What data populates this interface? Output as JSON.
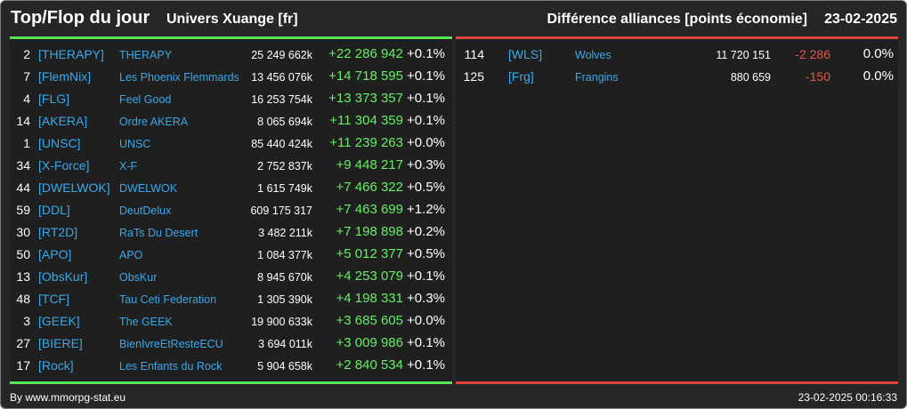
{
  "header": {
    "title": "Top/Flop du jour",
    "subtitle": "Univers Xuange [fr]",
    "right_title": "Différence alliances [points économie]",
    "date": "23-02-2025"
  },
  "colors": {
    "top_accent": "#55e555",
    "flop_accent": "#e0463c",
    "link": "#3aa8e8"
  },
  "top": [
    {
      "rank": "2",
      "tag": "[THERAPY]",
      "name": "THERAPY",
      "points": "25 249 662k",
      "diff": "+22 286 942",
      "pct": "+0.1%"
    },
    {
      "rank": "7",
      "tag": "[FlemNix]",
      "name": "Les Phoenix Flemmards",
      "points": "13 456 076k",
      "diff": "+14 718 595",
      "pct": "+0.1%"
    },
    {
      "rank": "4",
      "tag": "[FLG]",
      "name": "Feel Good",
      "points": "16 253 754k",
      "diff": "+13 373 357",
      "pct": "+0.1%"
    },
    {
      "rank": "14",
      "tag": "[AKERA]",
      "name": "Ordre AKERA",
      "points": "8 065 694k",
      "diff": "+11 304 359",
      "pct": "+0.1%"
    },
    {
      "rank": "1",
      "tag": "[UNSC]",
      "name": "UNSC",
      "points": "85 440 424k",
      "diff": "+11 239 263",
      "pct": "+0.0%"
    },
    {
      "rank": "34",
      "tag": "[X-Force]",
      "name": "X-F",
      "points": "2 752 837k",
      "diff": "+9 448 217",
      "pct": "+0.3%"
    },
    {
      "rank": "44",
      "tag": "[DWELWOK]",
      "name": "DWELWOK",
      "points": "1 615 749k",
      "diff": "+7 466 322",
      "pct": "+0.5%"
    },
    {
      "rank": "59",
      "tag": "[DDL]",
      "name": "DeutDelux",
      "points": "609 175 317",
      "diff": "+7 463 699",
      "pct": "+1.2%"
    },
    {
      "rank": "30",
      "tag": "[RT2D]",
      "name": "RaTs Du Desert",
      "points": "3 482 211k",
      "diff": "+7 198 898",
      "pct": "+0.2%"
    },
    {
      "rank": "50",
      "tag": "[APO]",
      "name": "APO",
      "points": "1 084 377k",
      "diff": "+5 012 377",
      "pct": "+0.5%"
    },
    {
      "rank": "13",
      "tag": "[ObsKur]",
      "name": "ObsKur",
      "points": "8 945 670k",
      "diff": "+4 253 079",
      "pct": "+0.1%"
    },
    {
      "rank": "48",
      "tag": "[TCF]",
      "name": "Tau Ceti Federation",
      "points": "1 305 390k",
      "diff": "+4 198 331",
      "pct": "+0.3%"
    },
    {
      "rank": "3",
      "tag": "[GEEK]",
      "name": "The GEEK",
      "points": "19 900 633k",
      "diff": "+3 685 605",
      "pct": "+0.0%"
    },
    {
      "rank": "27",
      "tag": "[BIERE]",
      "name": "BienIvreEtResteECU",
      "points": "3 694 011k",
      "diff": "+3 009 986",
      "pct": "+0.1%"
    },
    {
      "rank": "17",
      "tag": "[Rock]",
      "name": "Les Enfants du Rock",
      "points": "5 904 658k",
      "diff": "+2 840 534",
      "pct": "+0.1%"
    }
  ],
  "flop": [
    {
      "rank": "114",
      "tag": "[WLS]",
      "name": "Wolves",
      "points": "11 720 151",
      "diff": "-2 286",
      "pct": "0.0%"
    },
    {
      "rank": "125",
      "tag": "[Frg]",
      "name": "Frangins",
      "points": "880 659",
      "diff": "-150",
      "pct": "0.0%"
    }
  ],
  "footer": {
    "source": "By www.mmorpg-stat.eu",
    "generated": "23-02-2025 00:16:33"
  }
}
